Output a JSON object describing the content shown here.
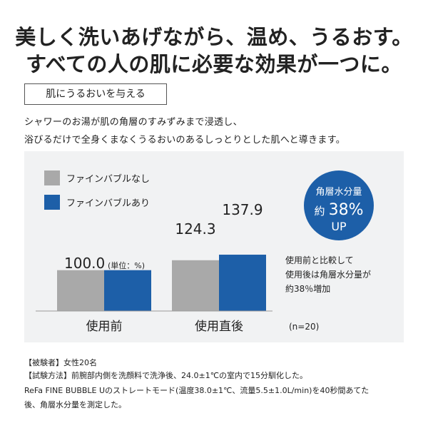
{
  "headline": {
    "line1": "美しく洗いあげながら、温め、うるおす。",
    "line2": "すべての人の肌に必要な効果が一つに。"
  },
  "tag": "肌にうるおいを与える",
  "description": {
    "line1": "シャワーのお湯が肌の角層のすみずみまで浸透し、",
    "line2": "浴びるだけで全身くまなくうるおいのあるしっとりとした肌へと導きます。"
  },
  "badge": {
    "line1": "角層水分量",
    "prefix": "約",
    "value": "38%",
    "suffix": "UP",
    "color": "#1d5fa8"
  },
  "note": {
    "line1": "使用前と比較して",
    "line2": "使用後は角層水分量が",
    "line3": "約38％増加"
  },
  "sample_note": "(n=20)",
  "unit_note": "(単位：%)",
  "chart_data": {
    "type": "bar",
    "categories": [
      "使用前",
      "使用直後"
    ],
    "series": [
      {
        "name": "ファインバブルなし",
        "color": "#a9a9a9",
        "values": [
          100.0,
          124.3
        ]
      },
      {
        "name": "ファインバブルあり",
        "color": "#1d5fa8",
        "values": [
          100.0,
          137.9
        ]
      }
    ],
    "data_labels": [
      "100.0",
      "124.3",
      "137.9"
    ],
    "ylim": [
      0,
      170
    ],
    "legend": "top-left",
    "grid": false,
    "title": "",
    "xlabel": "",
    "ylabel": ""
  },
  "footnotes": {
    "line1": "【被験者】女性20名",
    "line2": "【試験方法】前腕部内側を洗顔料で洗浄後、24.0±1℃の室内で15分馴化した。",
    "line3": "ReFa FINE BUBBLE Uのストレートモード(温度38.0±1℃、流量5.5±1.0L/min)を40秒間あてた",
    "line4": "後、角層水分量を測定した。"
  }
}
